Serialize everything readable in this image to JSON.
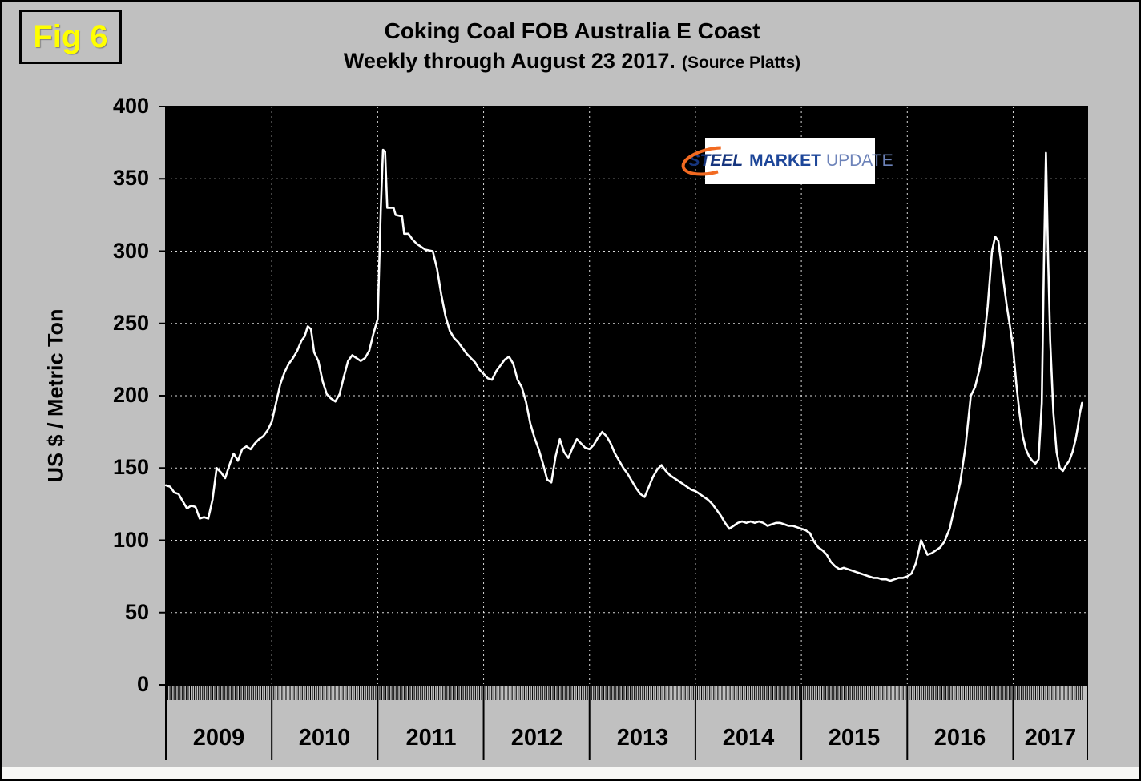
{
  "figure_label": "Fig 6",
  "title": {
    "line1": "Coking Coal FOB Australia E Coast",
    "line2": "Weekly through August 23 2017.",
    "source": "(Source Platts)"
  },
  "logo": {
    "word1": "STEEL",
    "word2": "MARKET",
    "word3": "UPDATE"
  },
  "chart_data": {
    "type": "line",
    "title": "Coking Coal FOB Australia E Coast",
    "subtitle": "Weekly through August 23 2017. (Source Platts)",
    "xlabel": "",
    "ylabel": "US $ / Metric Ton",
    "ylim": [
      0,
      400
    ],
    "ytick_interval": 50,
    "yticks": [
      "400",
      "350",
      "300",
      "250",
      "200",
      "150",
      "100",
      "50",
      "0"
    ],
    "xticks": [
      "2009",
      "2010",
      "2011",
      "2012",
      "2013",
      "2014",
      "2015",
      "2016",
      "2017"
    ],
    "x_domain": [
      2009.0,
      2017.7
    ],
    "grid": "dotted white gridlines on black plot area",
    "legend": "none",
    "line_color": "#ffffff",
    "plot_background": "#000000",
    "series": [
      {
        "name": "Coking Coal FOB Australia E Coast, weekly spot price (Platts)",
        "unit": "US $ / Metric Ton",
        "points": [
          [
            2009.0,
            138
          ],
          [
            2009.04,
            137
          ],
          [
            2009.08,
            133
          ],
          [
            2009.12,
            132
          ],
          [
            2009.16,
            127
          ],
          [
            2009.2,
            122
          ],
          [
            2009.24,
            124
          ],
          [
            2009.28,
            123
          ],
          [
            2009.32,
            115
          ],
          [
            2009.36,
            116
          ],
          [
            2009.4,
            115
          ],
          [
            2009.44,
            128
          ],
          [
            2009.48,
            150
          ],
          [
            2009.52,
            147
          ],
          [
            2009.56,
            143
          ],
          [
            2009.6,
            152
          ],
          [
            2009.64,
            160
          ],
          [
            2009.68,
            155
          ],
          [
            2009.72,
            163
          ],
          [
            2009.76,
            165
          ],
          [
            2009.8,
            163
          ],
          [
            2009.84,
            167
          ],
          [
            2009.88,
            170
          ],
          [
            2009.92,
            172
          ],
          [
            2009.96,
            176
          ],
          [
            2010.0,
            182
          ],
          [
            2010.04,
            195
          ],
          [
            2010.08,
            208
          ],
          [
            2010.12,
            216
          ],
          [
            2010.16,
            222
          ],
          [
            2010.2,
            226
          ],
          [
            2010.24,
            231
          ],
          [
            2010.28,
            238
          ],
          [
            2010.31,
            241
          ],
          [
            2010.34,
            248
          ],
          [
            2010.37,
            246
          ],
          [
            2010.4,
            230
          ],
          [
            2010.44,
            224
          ],
          [
            2010.48,
            210
          ],
          [
            2010.52,
            201
          ],
          [
            2010.56,
            198
          ],
          [
            2010.6,
            196
          ],
          [
            2010.64,
            201
          ],
          [
            2010.68,
            213
          ],
          [
            2010.72,
            224
          ],
          [
            2010.76,
            228
          ],
          [
            2010.8,
            226
          ],
          [
            2010.84,
            224
          ],
          [
            2010.88,
            226
          ],
          [
            2010.92,
            231
          ],
          [
            2010.96,
            243
          ],
          [
            2011.0,
            253
          ],
          [
            2011.03,
            330
          ],
          [
            2011.05,
            370
          ],
          [
            2011.07,
            369
          ],
          [
            2011.09,
            330
          ],
          [
            2011.15,
            330
          ],
          [
            2011.17,
            325
          ],
          [
            2011.23,
            324
          ],
          [
            2011.25,
            312
          ],
          [
            2011.29,
            312
          ],
          [
            2011.33,
            308
          ],
          [
            2011.37,
            305
          ],
          [
            2011.41,
            303
          ],
          [
            2011.45,
            301
          ],
          [
            2011.52,
            300
          ],
          [
            2011.56,
            288
          ],
          [
            2011.6,
            270
          ],
          [
            2011.64,
            255
          ],
          [
            2011.68,
            245
          ],
          [
            2011.72,
            240
          ],
          [
            2011.76,
            237
          ],
          [
            2011.8,
            233
          ],
          [
            2011.84,
            229
          ],
          [
            2011.88,
            226
          ],
          [
            2011.92,
            223
          ],
          [
            2011.96,
            218
          ],
          [
            2012.0,
            215
          ],
          [
            2012.04,
            212
          ],
          [
            2012.08,
            211
          ],
          [
            2012.12,
            217
          ],
          [
            2012.16,
            221
          ],
          [
            2012.2,
            225
          ],
          [
            2012.24,
            227
          ],
          [
            2012.28,
            222
          ],
          [
            2012.32,
            211
          ],
          [
            2012.36,
            206
          ],
          [
            2012.4,
            196
          ],
          [
            2012.44,
            181
          ],
          [
            2012.48,
            171
          ],
          [
            2012.52,
            163
          ],
          [
            2012.56,
            153
          ],
          [
            2012.6,
            142
          ],
          [
            2012.64,
            140
          ],
          [
            2012.68,
            158
          ],
          [
            2012.72,
            170
          ],
          [
            2012.76,
            161
          ],
          [
            2012.8,
            157
          ],
          [
            2012.84,
            164
          ],
          [
            2012.88,
            170
          ],
          [
            2012.92,
            167
          ],
          [
            2012.96,
            164
          ],
          [
            2013.0,
            163
          ],
          [
            2013.04,
            166
          ],
          [
            2013.08,
            171
          ],
          [
            2013.12,
            175
          ],
          [
            2013.16,
            172
          ],
          [
            2013.2,
            167
          ],
          [
            2013.24,
            160
          ],
          [
            2013.28,
            155
          ],
          [
            2013.32,
            150
          ],
          [
            2013.36,
            146
          ],
          [
            2013.4,
            141
          ],
          [
            2013.44,
            136
          ],
          [
            2013.48,
            132
          ],
          [
            2013.52,
            130
          ],
          [
            2013.56,
            137
          ],
          [
            2013.6,
            144
          ],
          [
            2013.64,
            149
          ],
          [
            2013.68,
            152
          ],
          [
            2013.72,
            148
          ],
          [
            2013.76,
            145
          ],
          [
            2013.8,
            143
          ],
          [
            2013.84,
            141
          ],
          [
            2013.88,
            139
          ],
          [
            2013.92,
            137
          ],
          [
            2013.96,
            135
          ],
          [
            2014.0,
            134
          ],
          [
            2014.04,
            132
          ],
          [
            2014.08,
            130
          ],
          [
            2014.12,
            128
          ],
          [
            2014.16,
            125
          ],
          [
            2014.2,
            121
          ],
          [
            2014.24,
            117
          ],
          [
            2014.28,
            112
          ],
          [
            2014.32,
            108
          ],
          [
            2014.36,
            110
          ],
          [
            2014.4,
            112
          ],
          [
            2014.44,
            113
          ],
          [
            2014.48,
            112
          ],
          [
            2014.52,
            113
          ],
          [
            2014.56,
            112
          ],
          [
            2014.6,
            113
          ],
          [
            2014.64,
            112
          ],
          [
            2014.68,
            110
          ],
          [
            2014.72,
            111
          ],
          [
            2014.76,
            112
          ],
          [
            2014.8,
            112
          ],
          [
            2014.84,
            111
          ],
          [
            2014.88,
            110
          ],
          [
            2014.92,
            110
          ],
          [
            2014.96,
            109
          ],
          [
            2015.0,
            108
          ],
          [
            2015.04,
            107
          ],
          [
            2015.08,
            105
          ],
          [
            2015.12,
            99
          ],
          [
            2015.16,
            95
          ],
          [
            2015.2,
            93
          ],
          [
            2015.24,
            90
          ],
          [
            2015.28,
            85
          ],
          [
            2015.32,
            82
          ],
          [
            2015.36,
            80
          ],
          [
            2015.4,
            81
          ],
          [
            2015.44,
            80
          ],
          [
            2015.48,
            79
          ],
          [
            2015.52,
            78
          ],
          [
            2015.56,
            77
          ],
          [
            2015.6,
            76
          ],
          [
            2015.64,
            75
          ],
          [
            2015.68,
            74
          ],
          [
            2015.72,
            74
          ],
          [
            2015.76,
            73
          ],
          [
            2015.8,
            73
          ],
          [
            2015.84,
            72
          ],
          [
            2015.88,
            73
          ],
          [
            2015.92,
            74
          ],
          [
            2015.96,
            74
          ],
          [
            2016.0,
            75
          ],
          [
            2016.04,
            77
          ],
          [
            2016.08,
            84
          ],
          [
            2016.11,
            93
          ],
          [
            2016.13,
            100
          ],
          [
            2016.16,
            95
          ],
          [
            2016.19,
            90
          ],
          [
            2016.23,
            91
          ],
          [
            2016.27,
            93
          ],
          [
            2016.31,
            95
          ],
          [
            2016.35,
            99
          ],
          [
            2016.4,
            108
          ],
          [
            2016.45,
            124
          ],
          [
            2016.5,
            140
          ],
          [
            2016.55,
            165
          ],
          [
            2016.6,
            200
          ],
          [
            2016.64,
            206
          ],
          [
            2016.68,
            218
          ],
          [
            2016.72,
            235
          ],
          [
            2016.76,
            262
          ],
          [
            2016.8,
            300
          ],
          [
            2016.83,
            310
          ],
          [
            2016.86,
            307
          ],
          [
            2016.9,
            284
          ],
          [
            2016.94,
            262
          ],
          [
            2016.97,
            248
          ],
          [
            2017.0,
            232
          ],
          [
            2017.03,
            208
          ],
          [
            2017.06,
            188
          ],
          [
            2017.09,
            172
          ],
          [
            2017.12,
            163
          ],
          [
            2017.15,
            158
          ],
          [
            2017.18,
            155
          ],
          [
            2017.21,
            153
          ],
          [
            2017.24,
            156
          ],
          [
            2017.27,
            195
          ],
          [
            2017.29,
            290
          ],
          [
            2017.31,
            368
          ],
          [
            2017.33,
            295
          ],
          [
            2017.35,
            238
          ],
          [
            2017.38,
            188
          ],
          [
            2017.41,
            161
          ],
          [
            2017.44,
            150
          ],
          [
            2017.47,
            148
          ],
          [
            2017.5,
            152
          ],
          [
            2017.53,
            155
          ],
          [
            2017.56,
            161
          ],
          [
            2017.59,
            170
          ],
          [
            2017.61,
            178
          ],
          [
            2017.63,
            188
          ],
          [
            2017.65,
            195
          ]
        ]
      }
    ]
  }
}
